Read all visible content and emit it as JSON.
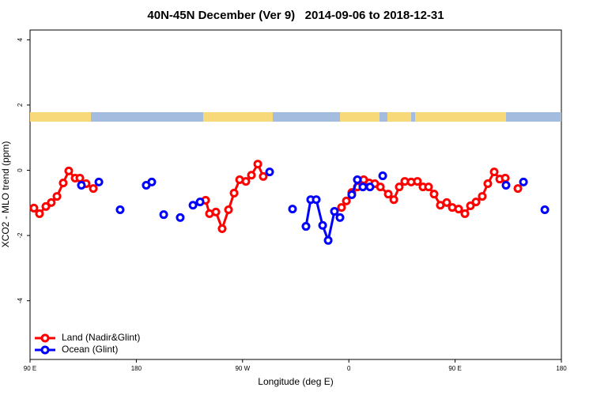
{
  "chart_data": {
    "type": "line",
    "title": "40N-45N December (Ver 9)   2014-09-06 to 2018-12-31",
    "x_label": "Longitude (deg E)",
    "y_label": "XCO2 - MLO trend (ppm)",
    "xlim": [
      90,
      540
    ],
    "xticks": [
      {
        "value": 90,
        "label": "90 E"
      },
      {
        "value": 180,
        "label": "180"
      },
      {
        "value": 270,
        "label": "90 W"
      },
      {
        "value": 360,
        "label": "0"
      },
      {
        "value": 450,
        "label": "90 E"
      },
      {
        "value": 540,
        "label": "180"
      }
    ],
    "ylim": [
      -5.8,
      4.3
    ],
    "yticks": [
      -4,
      -2,
      0,
      2,
      4
    ],
    "grid": false,
    "legend": "bottomleft",
    "series": [
      {
        "name": "Land (Nadir&Glint)",
        "color": "#ff0000",
        "x": [
          93.3,
          98,
          103.4,
          108,
          112.8,
          118.1,
          122.8,
          128.2,
          132.2,
          137.5,
          143.6,
          null,
          238.7,
          242,
          247.4,
          252.7,
          258.1,
          262.8,
          267.5,
          272.8,
          277.5,
          282.9,
          287.5,
          null,
          353.8,
          357.9,
          362.5,
          367.2,
          372.6,
          377.3,
          382,
          386.7,
          393.4,
          398.1,
          402.7,
          407.4,
          412.8,
          418.1,
          422.8,
          427.5,
          432.2,
          437.5,
          442.9,
          447.6,
          453,
          458.3,
          463,
          467.7,
          473,
          477.7,
          483.1,
          487.8,
          492.5,
          null,
          503.2
        ],
        "values": [
          -1.16,
          -1.33,
          -1.11,
          -0.99,
          -0.8,
          -0.39,
          -0.02,
          -0.24,
          -0.24,
          -0.41,
          -0.56,
          null,
          -0.92,
          -1.33,
          -1.28,
          -1.79,
          -1.21,
          -0.7,
          -0.29,
          -0.34,
          -0.15,
          0.19,
          -0.19,
          null,
          -1.14,
          -0.94,
          -0.68,
          -0.51,
          -0.29,
          -0.39,
          -0.41,
          -0.51,
          -0.73,
          -0.9,
          -0.51,
          -0.34,
          -0.36,
          -0.34,
          -0.51,
          -0.51,
          -0.73,
          -1.07,
          -0.99,
          -1.14,
          -1.19,
          -1.33,
          -1.09,
          -0.97,
          -0.8,
          -0.41,
          -0.05,
          -0.27,
          -0.24,
          null,
          -0.56
        ]
      },
      {
        "name": "Ocean (Glint)",
        "color": "#0000ff",
        "x": [
          133.5,
          null,
          148.3,
          null,
          166.3,
          null,
          188.4,
          193.1,
          null,
          203.2,
          null,
          217.2,
          null,
          228,
          234,
          null,
          292.9,
          null,
          312.3,
          null,
          323.7,
          327.7,
          332.4,
          337.8,
          342.5,
          347.8,
          352.5,
          null,
          362.5,
          367.2,
          null,
          371.9,
          377.9,
          null,
          388.7,
          null,
          493.1,
          null,
          507.9,
          null,
          526
        ],
        "values": [
          -0.46,
          null,
          -0.36,
          null,
          -1.21,
          null,
          -0.46,
          -0.36,
          null,
          -1.36,
          null,
          -1.45,
          null,
          -1.07,
          -0.97,
          null,
          -0.05,
          null,
          -1.19,
          null,
          -1.72,
          -0.9,
          -0.9,
          -1.69,
          -2.15,
          -1.26,
          -1.45,
          null,
          -0.75,
          -0.29,
          null,
          -0.51,
          -0.51,
          null,
          -0.17,
          null,
          -0.46,
          null,
          -0.36,
          null,
          -1.21
        ]
      }
    ]
  }
}
